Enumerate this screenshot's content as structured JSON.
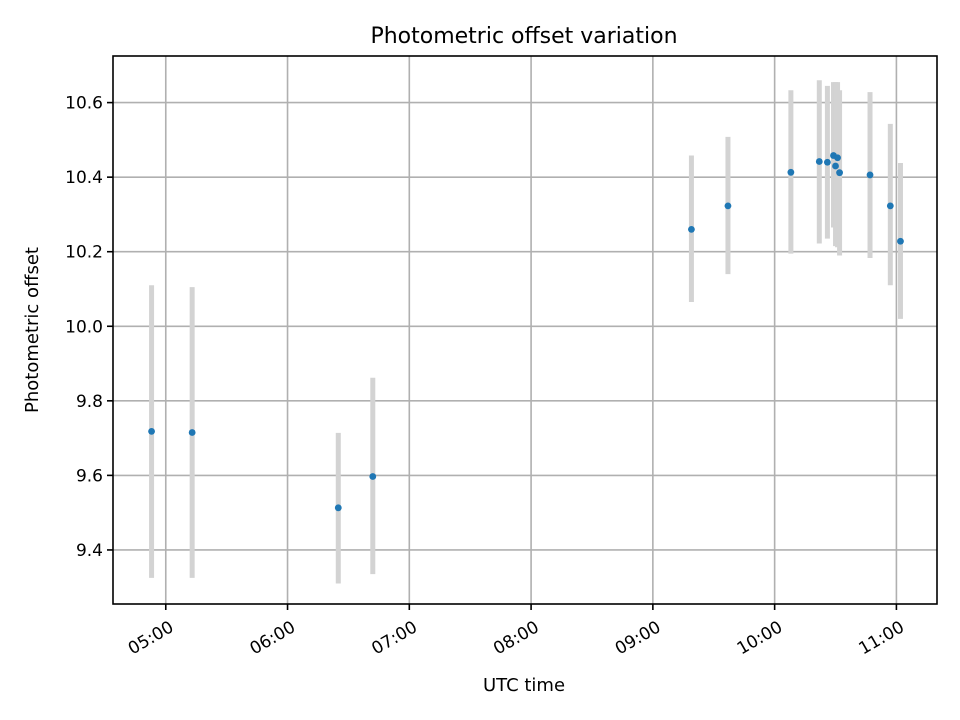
{
  "chart_data": {
    "type": "scatter",
    "title": "Photometric offset variation",
    "xlabel": "UTC time",
    "ylabel": "Photometric offset",
    "x_ticks": [
      "05:00",
      "06:00",
      "07:00",
      "08:00",
      "09:00",
      "10:00",
      "11:00"
    ],
    "y_ticks": [
      "9.4",
      "9.6",
      "9.8",
      "10.0",
      "10.2",
      "10.4",
      "10.6"
    ],
    "xlim": [
      "04:34",
      "11:20"
    ],
    "ylim": [
      9.255,
      10.725
    ],
    "grid": true,
    "legend": "none",
    "marker_color": "#1f77b4",
    "errorbar_color": "#d3d3d3",
    "points": [
      {
        "x": "04:53",
        "y": 9.718,
        "ylow": 9.325,
        "yhigh": 10.11
      },
      {
        "x": "05:13",
        "y": 9.715,
        "ylow": 9.325,
        "yhigh": 10.105
      },
      {
        "x": "06:25",
        "y": 9.513,
        "ylow": 9.31,
        "yhigh": 9.714
      },
      {
        "x": "06:42",
        "y": 9.597,
        "ylow": 9.335,
        "yhigh": 9.862
      },
      {
        "x": "09:19",
        "y": 10.26,
        "ylow": 10.065,
        "yhigh": 10.458
      },
      {
        "x": "09:37",
        "y": 10.323,
        "ylow": 10.14,
        "yhigh": 10.508
      },
      {
        "x": "10:08",
        "y": 10.413,
        "ylow": 10.195,
        "yhigh": 10.633
      },
      {
        "x": "10:22",
        "y": 10.442,
        "ylow": 10.222,
        "yhigh": 10.66
      },
      {
        "x": "10:26",
        "y": 10.44,
        "ylow": 10.235,
        "yhigh": 10.645
      },
      {
        "x": "10:29",
        "y": 10.458,
        "ylow": 10.265,
        "yhigh": 10.655
      },
      {
        "x": "10:30",
        "y": 10.43,
        "ylow": 10.215,
        "yhigh": 10.655
      },
      {
        "x": "10:31",
        "y": 10.452,
        "ylow": 10.212,
        "yhigh": 10.655
      },
      {
        "x": "10:32",
        "y": 10.412,
        "ylow": 10.19,
        "yhigh": 10.633
      },
      {
        "x": "10:47",
        "y": 10.406,
        "ylow": 10.183,
        "yhigh": 10.628
      },
      {
        "x": "10:57",
        "y": 10.323,
        "ylow": 10.11,
        "yhigh": 10.543
      },
      {
        "x": "11:02",
        "y": 10.228,
        "ylow": 10.02,
        "yhigh": 10.438
      }
    ]
  }
}
